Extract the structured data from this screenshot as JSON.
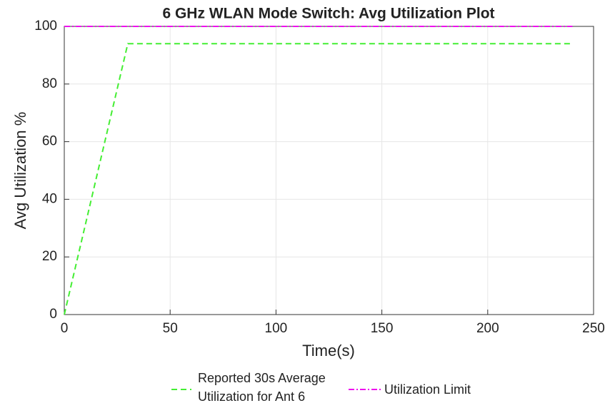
{
  "chart_data": {
    "type": "line",
    "title": "6 GHz WLAN Mode Switch: Avg Utilization Plot",
    "xlabel": "Time(s)",
    "ylabel": "Avg Utilization %",
    "xlim": [
      0,
      250
    ],
    "xticks": [
      0,
      50,
      100,
      150,
      200,
      250
    ],
    "ylim": [
      0,
      100
    ],
    "yticks": [
      0,
      20,
      40,
      60,
      80,
      100
    ],
    "grid": true,
    "legend": "bottom",
    "series": [
      {
        "name": "Reported 30s Average Utilization for Ant 6",
        "color": "#44ee33",
        "x": [
          0,
          30,
          240
        ],
        "values": [
          0,
          94,
          94
        ]
      },
      {
        "name": "Utilization Limit",
        "color": "#ee11ee",
        "x": [
          0,
          240
        ],
        "values": [
          100,
          100
        ]
      }
    ]
  }
}
